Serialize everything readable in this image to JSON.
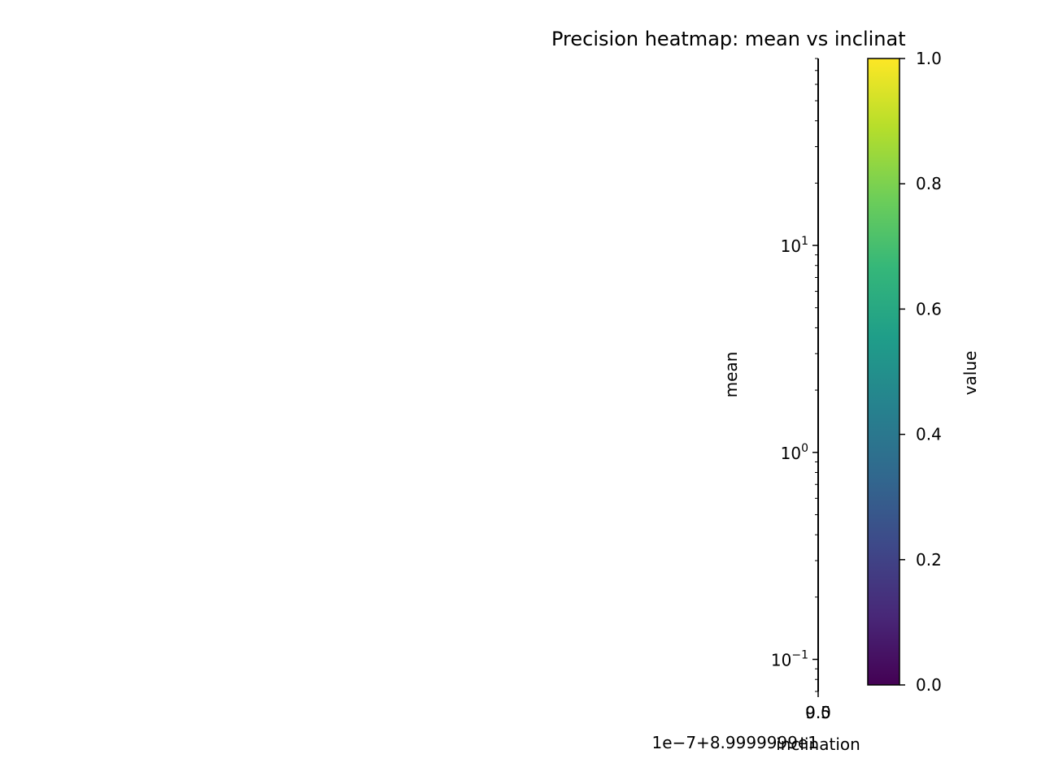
{
  "chart_data": {
    "type": "heatmap",
    "title": "Precision heatmap: mean vs inclinat",
    "xlabel": "inclination",
    "ylabel": "mean",
    "x_ticks": [
      "9.5",
      "0.0"
    ],
    "x_offset_label": "1e−7+8.9999999e1",
    "y_scale": "log",
    "y_ticks": [
      {
        "value": 10,
        "base": "10",
        "exp": "1"
      },
      {
        "value": 1,
        "base": "10",
        "exp": "0"
      },
      {
        "value": 0.1,
        "base": "10",
        "exp": "−1"
      }
    ],
    "ylim": [
      0.07,
      80
    ],
    "cells": [],
    "colorbar": {
      "label": "value",
      "colormap": "viridis",
      "range": [
        0,
        1
      ],
      "ticks": [
        "0.0",
        "0.2",
        "0.4",
        "0.6",
        "0.8",
        "1.0"
      ],
      "stops": [
        "#440154",
        "#482878",
        "#3e4989",
        "#31688e",
        "#26828e",
        "#1f9e89",
        "#35b779",
        "#6ece58",
        "#b5de2b",
        "#fde725"
      ]
    }
  }
}
